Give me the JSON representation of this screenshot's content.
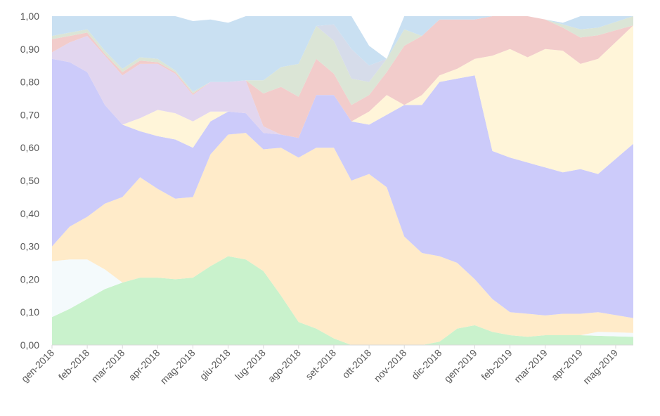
{
  "chart_data": {
    "type": "area",
    "stacked": true,
    "normalized": true,
    "title": "",
    "xlabel": "",
    "ylabel": "",
    "ylim": [
      0,
      1
    ],
    "yticks": [
      "0,00",
      "0,10",
      "0,20",
      "0,30",
      "0,40",
      "0,50",
      "0,60",
      "0,70",
      "0,80",
      "0,90",
      "1,00"
    ],
    "x_tick_labels": [
      "gen-2018",
      "feb-2018",
      "mar-2018",
      "apr-2018",
      "mag-2018",
      "giu-2018",
      "lug-2018",
      "ago-2018",
      "set-2018",
      "ott-2018",
      "nov-2018",
      "dic-2018",
      "gen-2019",
      "feb-2019",
      "mar-2019",
      "apr-2019",
      "mag-2019"
    ],
    "grid": false,
    "legend": "none",
    "x": [
      0,
      0.5,
      1,
      1.5,
      2,
      2.5,
      3,
      3.5,
      4,
      4.5,
      5,
      5.5,
      6,
      6.5,
      7,
      7.5,
      8,
      8.5,
      9,
      9.5,
      10,
      10.5,
      11,
      11.5,
      12,
      12.5,
      13,
      13.5,
      14,
      14.5,
      15,
      15.5,
      16.5
    ],
    "series": [
      {
        "color": "#c9f2cc",
        "values": [
          0.085,
          0.11,
          0.14,
          0.17,
          0.19,
          0.205,
          0.205,
          0.2,
          0.205,
          0.24,
          0.27,
          0.26,
          0.225,
          0.15,
          0.07,
          0.05,
          0.02,
          0.0,
          0.0,
          0.0,
          0.0,
          0.0,
          0.01,
          0.05,
          0.06,
          0.04,
          0.03,
          0.025,
          0.03,
          0.03,
          0.03,
          0.028,
          0.025
        ]
      },
      {
        "color": "#f4fafc",
        "values": [
          0.17,
          0.15,
          0.12,
          0.06,
          0.0,
          0.0,
          0.0,
          0.0,
          0.0,
          0.0,
          0.0,
          0.0,
          0.0,
          0.0,
          0.0,
          0.0,
          0.0,
          0.0,
          0.0,
          0.0,
          0.0,
          0.0,
          0.0,
          0.0,
          0.0,
          0.0,
          0.0,
          0.0,
          0.0,
          0.0,
          0.0,
          0.012,
          0.012
        ]
      },
      {
        "color": "#ffebc9",
        "values": [
          0.045,
          0.1,
          0.13,
          0.2,
          0.26,
          0.305,
          0.27,
          0.245,
          0.245,
          0.34,
          0.37,
          0.385,
          0.37,
          0.45,
          0.5,
          0.55,
          0.58,
          0.5,
          0.52,
          0.48,
          0.33,
          0.28,
          0.26,
          0.2,
          0.14,
          0.1,
          0.07,
          0.07,
          0.06,
          0.065,
          0.065,
          0.06,
          0.045
        ]
      },
      {
        "color": "#cccbfa",
        "values": [
          0.57,
          0.5,
          0.44,
          0.3,
          0.22,
          0.14,
          0.16,
          0.18,
          0.15,
          0.1,
          0.07,
          0.06,
          0.05,
          0.04,
          0.06,
          0.16,
          0.16,
          0.18,
          0.15,
          0.22,
          0.4,
          0.45,
          0.53,
          0.56,
          0.62,
          0.45,
          0.47,
          0.46,
          0.45,
          0.43,
          0.44,
          0.42,
          0.53
        ]
      },
      {
        "color": "#fff5d9",
        "values": [
          0.0,
          0.0,
          0.0,
          0.0,
          0.0,
          0.04,
          0.08,
          0.08,
          0.08,
          0.03,
          0.0,
          0.0,
          0.0,
          0.0,
          0.0,
          0.0,
          0.0,
          0.0,
          0.04,
          0.06,
          0.0,
          0.03,
          0.02,
          0.03,
          0.05,
          0.29,
          0.33,
          0.32,
          0.36,
          0.37,
          0.32,
          0.35,
          0.36
        ]
      },
      {
        "color": "#e2d6ef",
        "values": [
          0.02,
          0.06,
          0.11,
          0.15,
          0.15,
          0.165,
          0.14,
          0.12,
          0.08,
          0.09,
          0.09,
          0.1,
          0.02,
          0.0,
          0.0,
          0.0,
          0.0,
          0.0,
          0.0,
          0.0,
          0.0,
          0.0,
          0.0,
          0.0,
          0.0,
          0.0,
          0.0,
          0.0,
          0.0,
          0.0,
          0.0,
          0.0,
          0.0
        ]
      },
      {
        "color": "#f2cccb",
        "values": [
          0.04,
          0.02,
          0.01,
          0.005,
          0.01,
          0.01,
          0.005,
          0.005,
          0.005,
          0.0,
          0.0,
          0.0,
          0.1,
          0.145,
          0.125,
          0.11,
          0.065,
          0.05,
          0.05,
          0.07,
          0.18,
          0.18,
          0.17,
          0.15,
          0.12,
          0.12,
          0.1,
          0.125,
          0.09,
          0.07,
          0.08,
          0.072,
          0.0
        ]
      },
      {
        "color": "#dbe5d6",
        "values": [
          0.01,
          0.01,
          0.01,
          0.01,
          0.01,
          0.01,
          0.01,
          0.005,
          0.005,
          0.0,
          0.0,
          0.0,
          0.04,
          0.06,
          0.1,
          0.1,
          0.1,
          0.08,
          0.04,
          0.04,
          0.05,
          0.0,
          0.0,
          0.0,
          0.0,
          0.0,
          0.0,
          0.0,
          0.0,
          0.01,
          0.025,
          0.023,
          0.03
        ]
      },
      {
        "color": "#d6dcea",
        "values": [
          0.0,
          0.0,
          0.0,
          0.0,
          0.0,
          0.0,
          0.0,
          0.0,
          0.0,
          0.0,
          0.0,
          0.0,
          0.0,
          0.0,
          0.0,
          0.0,
          0.05,
          0.09,
          0.05,
          0.0,
          0.0,
          0.0,
          0.0,
          0.0,
          0.0,
          0.0,
          0.0,
          0.0,
          0.0,
          0.0,
          0.0,
          0.0,
          0.0
        ]
      },
      {
        "color": "#c9e0f2",
        "values": [
          0.06,
          0.05,
          0.04,
          0.105,
          0.16,
          0.125,
          0.13,
          0.165,
          0.215,
          0.19,
          0.18,
          0.195,
          0.195,
          0.155,
          0.145,
          0.14,
          0.125,
          0.1,
          0.06,
          0.0,
          0.04,
          0.06,
          0.01,
          0.01,
          0.01,
          0.0,
          0.0,
          0.0,
          0.0,
          0.005,
          0.04,
          0.035,
          0.0
        ]
      }
    ]
  }
}
